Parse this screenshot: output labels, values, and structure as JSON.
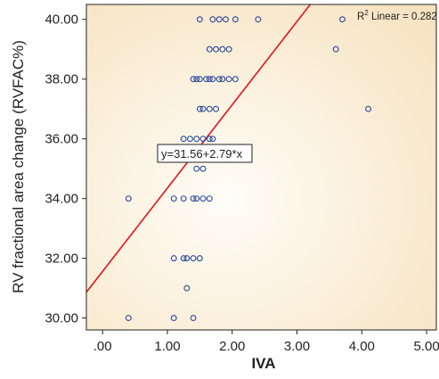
{
  "chart_data": {
    "type": "scatter",
    "xlabel": "IVA",
    "ylabel": "RV fractional area change (RVFAC%)",
    "xlim": [
      -0.25,
      5.15
    ],
    "ylim": [
      29.6,
      40.5
    ],
    "x_ticks": [
      0,
      1,
      2,
      3,
      4,
      5
    ],
    "x_tick_labels": [
      ".00",
      "1.00",
      "2.00",
      "3.00",
      "4.00",
      "5.00"
    ],
    "y_ticks": [
      30,
      32,
      34,
      36,
      38,
      40
    ],
    "y_tick_labels": [
      "30.00",
      "32.00",
      "34.00",
      "36.00",
      "38.00",
      "40.00"
    ],
    "grid": false,
    "points": [
      {
        "x": 1.5,
        "y": 40
      },
      {
        "x": 1.7,
        "y": 40
      },
      {
        "x": 1.8,
        "y": 40
      },
      {
        "x": 1.9,
        "y": 40
      },
      {
        "x": 2.05,
        "y": 40
      },
      {
        "x": 2.4,
        "y": 40
      },
      {
        "x": 3.7,
        "y": 40
      },
      {
        "x": 1.65,
        "y": 39
      },
      {
        "x": 1.75,
        "y": 39
      },
      {
        "x": 1.85,
        "y": 39
      },
      {
        "x": 1.95,
        "y": 39
      },
      {
        "x": 3.6,
        "y": 39
      },
      {
        "x": 1.4,
        "y": 38
      },
      {
        "x": 1.45,
        "y": 38
      },
      {
        "x": 1.5,
        "y": 38
      },
      {
        "x": 1.6,
        "y": 38
      },
      {
        "x": 1.65,
        "y": 38
      },
      {
        "x": 1.7,
        "y": 38
      },
      {
        "x": 1.8,
        "y": 38
      },
      {
        "x": 1.85,
        "y": 38
      },
      {
        "x": 1.95,
        "y": 38
      },
      {
        "x": 2.05,
        "y": 38
      },
      {
        "x": 1.5,
        "y": 37
      },
      {
        "x": 1.55,
        "y": 37
      },
      {
        "x": 1.65,
        "y": 37
      },
      {
        "x": 1.75,
        "y": 37
      },
      {
        "x": 4.1,
        "y": 37
      },
      {
        "x": 1.25,
        "y": 36
      },
      {
        "x": 1.35,
        "y": 36
      },
      {
        "x": 1.45,
        "y": 36
      },
      {
        "x": 1.55,
        "y": 36
      },
      {
        "x": 1.65,
        "y": 36
      },
      {
        "x": 1.7,
        "y": 36
      },
      {
        "x": 1.45,
        "y": 35
      },
      {
        "x": 1.55,
        "y": 35
      },
      {
        "x": 0.4,
        "y": 34
      },
      {
        "x": 1.1,
        "y": 34
      },
      {
        "x": 1.25,
        "y": 34
      },
      {
        "x": 1.4,
        "y": 34
      },
      {
        "x": 1.45,
        "y": 34
      },
      {
        "x": 1.55,
        "y": 34
      },
      {
        "x": 1.65,
        "y": 34
      },
      {
        "x": 1.1,
        "y": 32
      },
      {
        "x": 1.25,
        "y": 32
      },
      {
        "x": 1.3,
        "y": 32
      },
      {
        "x": 1.4,
        "y": 32
      },
      {
        "x": 1.5,
        "y": 32
      },
      {
        "x": 1.3,
        "y": 31
      },
      {
        "x": 0.4,
        "y": 30
      },
      {
        "x": 1.1,
        "y": 30
      },
      {
        "x": 1.4,
        "y": 30
      }
    ],
    "fit_line": {
      "intercept": 31.56,
      "slope": 2.79,
      "color": "#e0141e"
    },
    "annotations": {
      "equation": "y=31.56+2.79*x",
      "r2_prefix": "R",
      "r2_sup": "2",
      "r2_text": " Linear = 0.282"
    },
    "point_color": "#2a4a9a",
    "background_gradient": [
      "#fffdf7",
      "#f6e1bd"
    ]
  }
}
